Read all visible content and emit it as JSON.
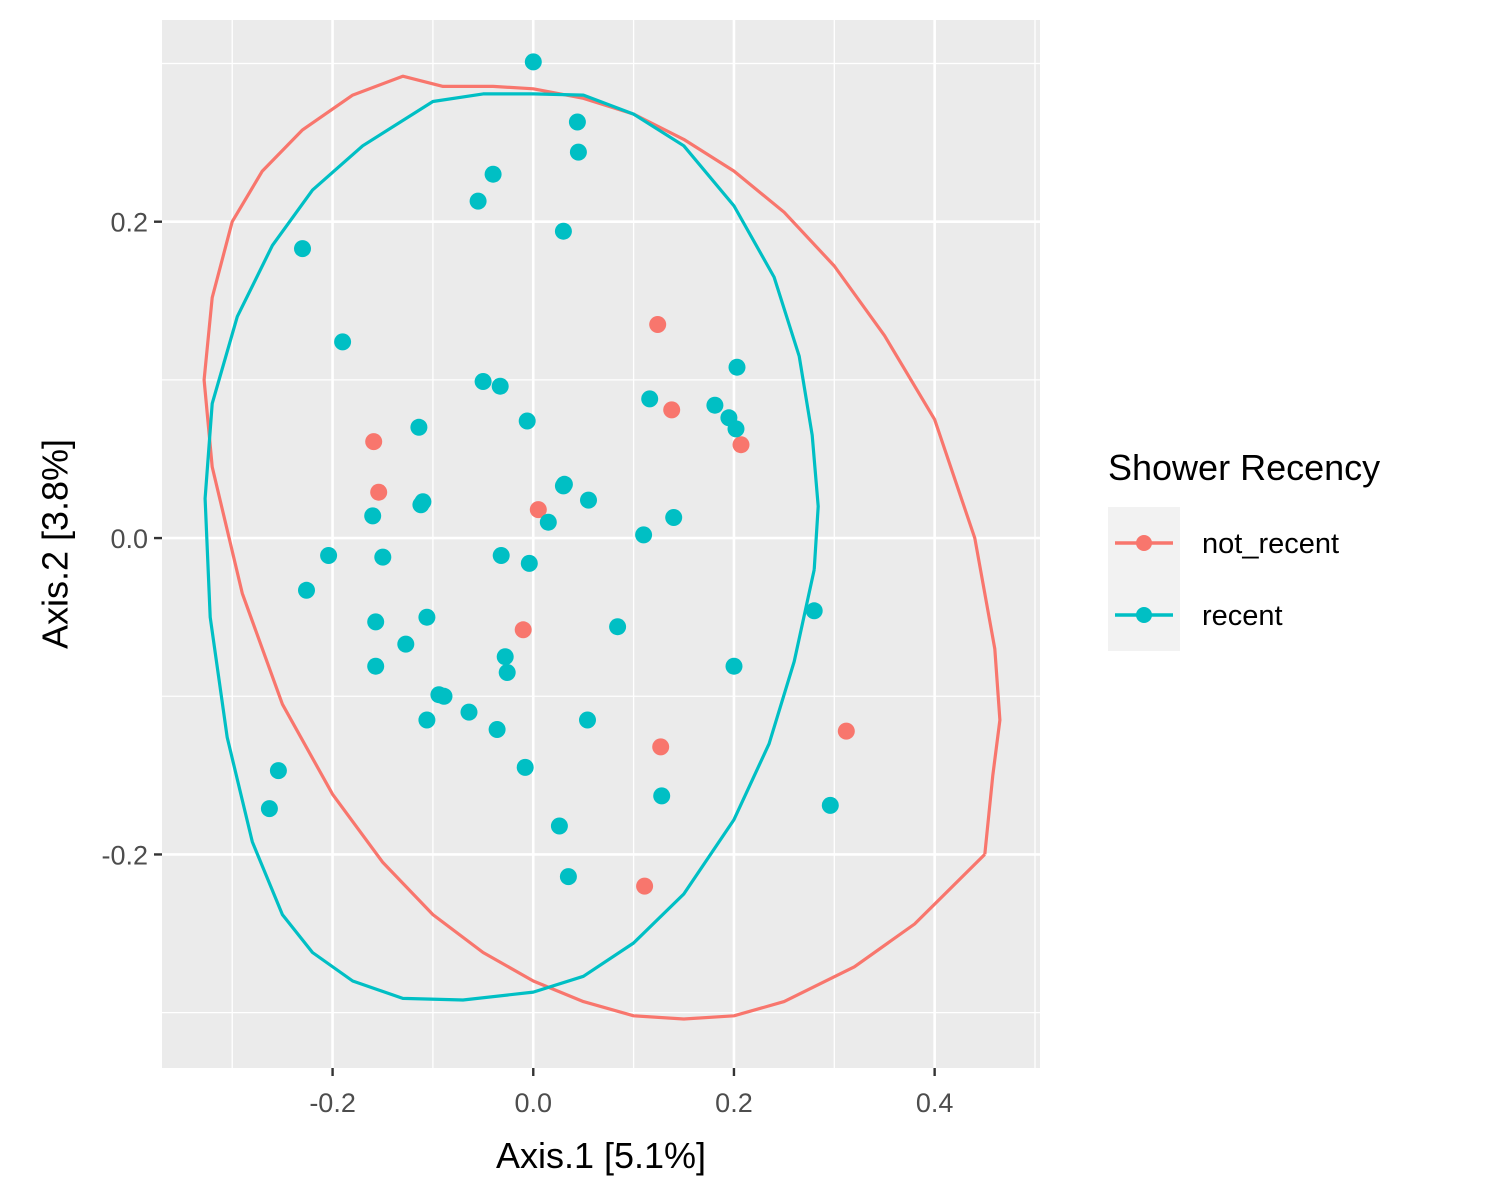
{
  "chart_data": {
    "type": "scatter",
    "xlabel": "Axis.1   [5.1%]",
    "ylabel": "Axis.2   [3.8%]",
    "xlim": [
      -0.37,
      0.505
    ],
    "ylim": [
      -0.335,
      0.3275
    ],
    "x_ticks": [
      -0.2,
      0.0,
      0.2,
      0.4
    ],
    "x_tick_labels": [
      "-0.2",
      "0.0",
      "0.2",
      "0.4"
    ],
    "y_ticks": [
      -0.2,
      0.0,
      0.2
    ],
    "y_tick_labels": [
      "-0.2",
      "0.0",
      "0.2"
    ],
    "grid": true,
    "panel_background": "#ebebeb",
    "legend": {
      "title": "Shower Recency",
      "position": "right"
    },
    "series": [
      {
        "name": "not_recent",
        "color": "#F8766D",
        "points": [
          [
            0.124,
            0.135
          ],
          [
            0.138,
            0.081
          ],
          [
            0.207,
            0.059
          ],
          [
            -0.159,
            0.061
          ],
          [
            -0.154,
            0.029
          ],
          [
            0.005,
            0.018
          ],
          [
            -0.01,
            -0.058
          ],
          [
            0.127,
            -0.132
          ],
          [
            0.312,
            -0.122
          ],
          [
            0.111,
            -0.22
          ]
        ],
        "ellipse": [
          [
            0.45,
            -0.2
          ],
          [
            0.38,
            -0.244
          ],
          [
            0.32,
            -0.271
          ],
          [
            0.25,
            -0.293
          ],
          [
            0.2,
            -0.302
          ],
          [
            0.15,
            -0.304
          ],
          [
            0.1,
            -0.302
          ],
          [
            0.05,
            -0.293
          ],
          [
            0.0,
            -0.28
          ],
          [
            -0.05,
            -0.262
          ],
          [
            -0.1,
            -0.238
          ],
          [
            -0.15,
            -0.205
          ],
          [
            -0.2,
            -0.162
          ],
          [
            -0.25,
            -0.105
          ],
          [
            -0.29,
            -0.035
          ],
          [
            -0.32,
            0.045
          ],
          [
            -0.328,
            0.1
          ],
          [
            -0.32,
            0.152
          ],
          [
            -0.3,
            0.2
          ],
          [
            -0.27,
            0.232
          ],
          [
            -0.23,
            0.258
          ],
          [
            -0.18,
            0.28
          ],
          [
            -0.13,
            0.292
          ],
          [
            -0.09,
            0.2855
          ],
          [
            -0.04,
            0.2855
          ],
          [
            0.0,
            0.284
          ],
          [
            0.05,
            0.278
          ],
          [
            0.1,
            0.268
          ],
          [
            0.15,
            0.252
          ],
          [
            0.2,
            0.232
          ],
          [
            0.25,
            0.206
          ],
          [
            0.3,
            0.172
          ],
          [
            0.35,
            0.128
          ],
          [
            0.4,
            0.075
          ],
          [
            0.44,
            0.0
          ],
          [
            0.46,
            -0.07
          ],
          [
            0.465,
            -0.115
          ],
          [
            0.458,
            -0.15
          ],
          [
            0.45,
            -0.2
          ]
        ]
      },
      {
        "name": "recent",
        "color": "#00BFC4",
        "points": [
          [
            0.0,
            0.301
          ],
          [
            0.044,
            0.263
          ],
          [
            0.045,
            0.244
          ],
          [
            -0.04,
            0.23
          ],
          [
            -0.055,
            0.213
          ],
          [
            0.03,
            0.194
          ],
          [
            -0.23,
            0.183
          ],
          [
            -0.19,
            0.124
          ],
          [
            -0.05,
            0.099
          ],
          [
            -0.033,
            0.096
          ],
          [
            0.203,
            0.108
          ],
          [
            0.116,
            0.088
          ],
          [
            0.181,
            0.084
          ],
          [
            0.195,
            0.076
          ],
          [
            0.202,
            0.069
          ],
          [
            -0.114,
            0.07
          ],
          [
            -0.006,
            0.074
          ],
          [
            0.031,
            0.034
          ],
          [
            0.03,
            0.033
          ],
          [
            0.055,
            0.024
          ],
          [
            -0.11,
            0.023
          ],
          [
            -0.112,
            0.021
          ],
          [
            -0.16,
            0.014
          ],
          [
            0.015,
            0.01
          ],
          [
            0.14,
            0.013
          ],
          [
            0.11,
            0.002
          ],
          [
            -0.204,
            -0.011
          ],
          [
            -0.15,
            -0.012
          ],
          [
            -0.032,
            -0.011
          ],
          [
            -0.004,
            -0.016
          ],
          [
            -0.226,
            -0.033
          ],
          [
            -0.157,
            -0.053
          ],
          [
            -0.106,
            -0.05
          ],
          [
            0.084,
            -0.056
          ],
          [
            0.28,
            -0.046
          ],
          [
            -0.127,
            -0.067
          ],
          [
            -0.028,
            -0.075
          ],
          [
            -0.157,
            -0.081
          ],
          [
            -0.026,
            -0.085
          ],
          [
            0.2,
            -0.081
          ],
          [
            -0.094,
            -0.099
          ],
          [
            -0.089,
            -0.1
          ],
          [
            -0.064,
            -0.11
          ],
          [
            -0.106,
            -0.115
          ],
          [
            -0.036,
            -0.121
          ],
          [
            0.054,
            -0.115
          ],
          [
            -0.008,
            -0.145
          ],
          [
            -0.254,
            -0.147
          ],
          [
            -0.263,
            -0.171
          ],
          [
            0.128,
            -0.163
          ],
          [
            0.296,
            -0.169
          ],
          [
            0.026,
            -0.182
          ],
          [
            0.035,
            -0.214
          ]
        ],
        "ellipse": [
          [
            0.28,
            -0.02
          ],
          [
            0.26,
            -0.078
          ],
          [
            0.235,
            -0.13
          ],
          [
            0.2,
            -0.178
          ],
          [
            0.15,
            -0.225
          ],
          [
            0.1,
            -0.256
          ],
          [
            0.05,
            -0.277
          ],
          [
            0.0,
            -0.287
          ],
          [
            -0.07,
            -0.292
          ],
          [
            -0.13,
            -0.291
          ],
          [
            -0.18,
            -0.28
          ],
          [
            -0.22,
            -0.262
          ],
          [
            -0.25,
            -0.238
          ],
          [
            -0.28,
            -0.192
          ],
          [
            -0.305,
            -0.126
          ],
          [
            -0.322,
            -0.05
          ],
          [
            -0.327,
            0.025
          ],
          [
            -0.32,
            0.085
          ],
          [
            -0.295,
            0.14
          ],
          [
            -0.26,
            0.185
          ],
          [
            -0.22,
            0.22
          ],
          [
            -0.17,
            0.248
          ],
          [
            -0.1,
            0.276
          ],
          [
            -0.05,
            0.2808
          ],
          [
            0.0,
            0.2808
          ],
          [
            0.05,
            0.28
          ],
          [
            0.1,
            0.268
          ],
          [
            0.15,
            0.248
          ],
          [
            0.2,
            0.21
          ],
          [
            0.24,
            0.165
          ],
          [
            0.265,
            0.115
          ],
          [
            0.278,
            0.065
          ],
          [
            0.284,
            0.02
          ],
          [
            0.28,
            -0.02
          ]
        ]
      }
    ]
  }
}
